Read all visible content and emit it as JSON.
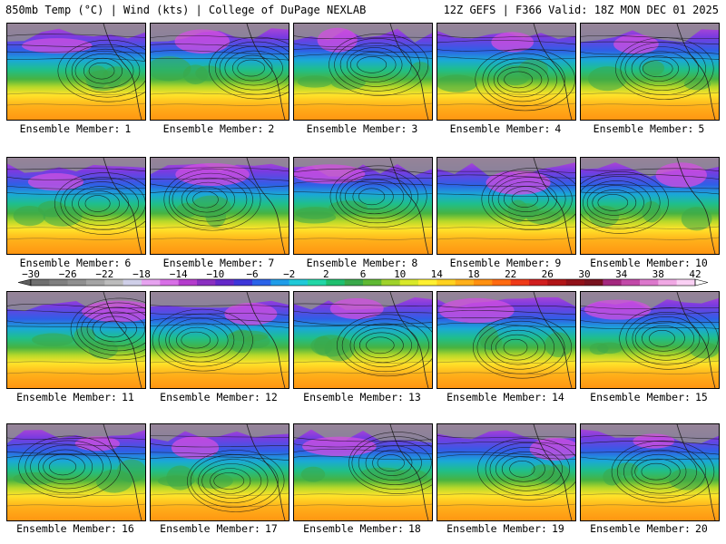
{
  "header": {
    "left_title": "850mb Temp (°C) | Wind (kts) | College of DuPage NEXLAB",
    "right_title": "12Z GEFS | F366 Valid: 18Z MON DEC 01 2025"
  },
  "ensemble": {
    "label_prefix": "Ensemble Member:",
    "members": [
      "1",
      "2",
      "3",
      "4",
      "5",
      "6",
      "7",
      "8",
      "9",
      "10",
      "11",
      "12",
      "13",
      "14",
      "15",
      "16",
      "17",
      "18",
      "19",
      "20"
    ]
  },
  "colorbar": {
    "ticks": [
      "−30",
      "−26",
      "−22",
      "−18",
      "−14",
      "−10",
      "−6",
      "−2",
      "2",
      "6",
      "10",
      "14",
      "18",
      "22",
      "26",
      "30",
      "34",
      "38",
      "42"
    ],
    "colors": [
      "#6f6f6f",
      "#7f7f7f",
      "#8f8f8f",
      "#a4a4a4",
      "#bcbcbc",
      "#cfcfe8",
      "#e6a3ef",
      "#d86fe6",
      "#b43ccc",
      "#8a2fc0",
      "#6428c8",
      "#3d36d8",
      "#2b63e8",
      "#1f9ce8",
      "#20c9d8",
      "#22d6a6",
      "#1fbf6e",
      "#3aa84a",
      "#5fb833",
      "#9fd22b",
      "#d8e82a",
      "#fff030",
      "#ffd21f",
      "#ffb01a",
      "#ff9010",
      "#ff6a10",
      "#ee3a18",
      "#d01e1e",
      "#b01416",
      "#901018",
      "#78121e",
      "#a3287e",
      "#c249a8",
      "#dc78cc",
      "#f0a8e4",
      "#fad0f4"
    ]
  }
}
